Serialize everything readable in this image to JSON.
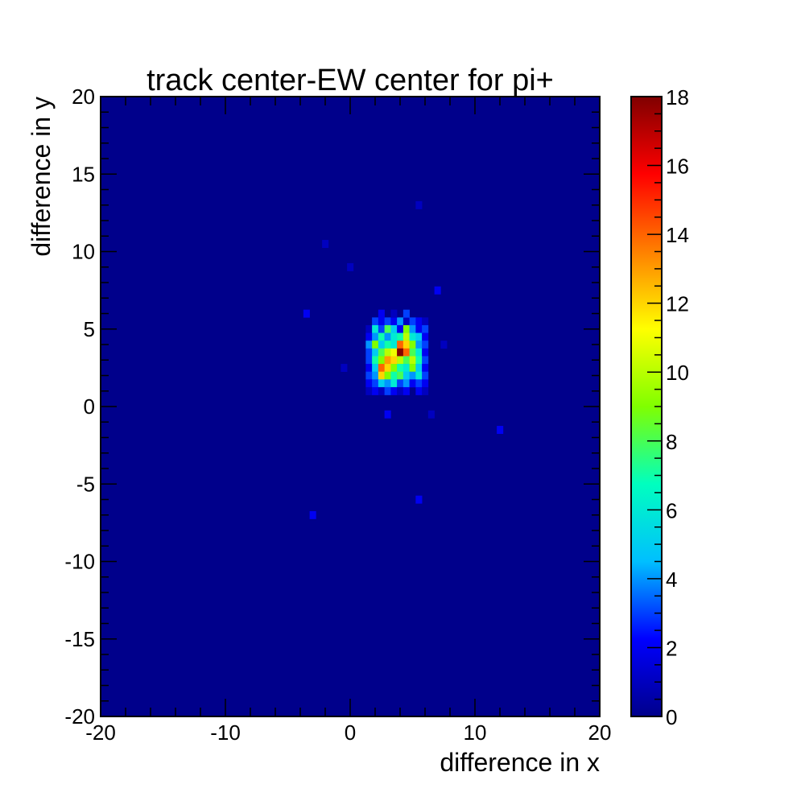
{
  "chart_data": {
    "type": "heatmap",
    "title": "track center-EW center for pi+",
    "xlabel": "difference in x",
    "ylabel": "difference in y",
    "xlim": [
      -20,
      20
    ],
    "ylim": [
      -20,
      20
    ],
    "zlim": [
      0,
      18
    ],
    "bin_width": 0.5,
    "x_ticks": [
      "-20",
      "-10",
      "0",
      "10",
      "20"
    ],
    "y_ticks": [
      "-20",
      "-15",
      "-10",
      "-5",
      "0",
      "5",
      "10",
      "15",
      "20"
    ],
    "z_ticks": [
      "0",
      "2",
      "4",
      "6",
      "8",
      "10",
      "12",
      "14",
      "16",
      "18"
    ],
    "colormap": [
      "#00008b",
      "#0000ff",
      "#00bfff",
      "#00ffbf",
      "#80ff00",
      "#ffff00",
      "#ff8000",
      "#ff0000",
      "#800000"
    ],
    "background_color": "#00008b",
    "bins": [
      [
        -3.5,
        6,
        2
      ],
      [
        -2,
        10.5,
        1
      ],
      [
        0,
        9,
        1
      ],
      [
        5.5,
        13,
        1
      ],
      [
        7,
        7.5,
        2
      ],
      [
        -0.5,
        2.5,
        1
      ],
      [
        3,
        -0.5,
        2
      ],
      [
        6.5,
        -0.5,
        1
      ],
      [
        12,
        -1.5,
        2
      ],
      [
        5.5,
        -6,
        2
      ],
      [
        -3,
        -7,
        2
      ],
      [
        7.5,
        4,
        1
      ],
      [
        2,
        5.5,
        3
      ],
      [
        2.5,
        5.5,
        2
      ],
      [
        3,
        5.5,
        3
      ],
      [
        3.5,
        5.5,
        2
      ],
      [
        4,
        5.5,
        4
      ],
      [
        4.5,
        5.5,
        1
      ],
      [
        5,
        5.5,
        3
      ],
      [
        5.5,
        5.5,
        2
      ],
      [
        6,
        5.5,
        1
      ],
      [
        2.5,
        6,
        2
      ],
      [
        3.5,
        6,
        1
      ],
      [
        4.5,
        6,
        3
      ],
      [
        1.5,
        5,
        1
      ],
      [
        2,
        5,
        6
      ],
      [
        2.5,
        5,
        3
      ],
      [
        3,
        5,
        8
      ],
      [
        3.5,
        5,
        5
      ],
      [
        4,
        5,
        2
      ],
      [
        4.5,
        5,
        9
      ],
      [
        5,
        5,
        4
      ],
      [
        5.5,
        5,
        2
      ],
      [
        6,
        5,
        3
      ],
      [
        1.5,
        4.5,
        2
      ],
      [
        2,
        4.5,
        4
      ],
      [
        2.5,
        4.5,
        7
      ],
      [
        3,
        4.5,
        4
      ],
      [
        3.5,
        4.5,
        6
      ],
      [
        4,
        4.5,
        7
      ],
      [
        4.5,
        4.5,
        10
      ],
      [
        5,
        4.5,
        6
      ],
      [
        5.5,
        4.5,
        5
      ],
      [
        6,
        4.5,
        2
      ],
      [
        1.5,
        4,
        4
      ],
      [
        2,
        4,
        9
      ],
      [
        2.5,
        4,
        5
      ],
      [
        3,
        4,
        7
      ],
      [
        3.5,
        4,
        6
      ],
      [
        4,
        4,
        14
      ],
      [
        4.5,
        4,
        12
      ],
      [
        5,
        4,
        9
      ],
      [
        5.5,
        4,
        4
      ],
      [
        6,
        4,
        3
      ],
      [
        1.5,
        3.5,
        3
      ],
      [
        2,
        3.5,
        5
      ],
      [
        2.5,
        3.5,
        8
      ],
      [
        3,
        3.5,
        10
      ],
      [
        3.5,
        3.5,
        11
      ],
      [
        4,
        3.5,
        18
      ],
      [
        4.5,
        3.5,
        14
      ],
      [
        5,
        3.5,
        8
      ],
      [
        5.5,
        3.5,
        6
      ],
      [
        6,
        3.5,
        2
      ],
      [
        1.5,
        3,
        3
      ],
      [
        2,
        3,
        7
      ],
      [
        2.5,
        3,
        9
      ],
      [
        3,
        3,
        13
      ],
      [
        3.5,
        3,
        12
      ],
      [
        4,
        3,
        10
      ],
      [
        4.5,
        3,
        8
      ],
      [
        5,
        3,
        10
      ],
      [
        5.5,
        3,
        7
      ],
      [
        6,
        3,
        3
      ],
      [
        1.5,
        2.5,
        2
      ],
      [
        2,
        2.5,
        5
      ],
      [
        2.5,
        2.5,
        14
      ],
      [
        3,
        2.5,
        12
      ],
      [
        3.5,
        2.5,
        9
      ],
      [
        4,
        2.5,
        7
      ],
      [
        4.5,
        2.5,
        6
      ],
      [
        5,
        2.5,
        9
      ],
      [
        5.5,
        2.5,
        5
      ],
      [
        6,
        2.5,
        2
      ],
      [
        1.5,
        2,
        3
      ],
      [
        2,
        2,
        4
      ],
      [
        2.5,
        2,
        12
      ],
      [
        3,
        2,
        9
      ],
      [
        3.5,
        2,
        7
      ],
      [
        4,
        2,
        8
      ],
      [
        4.5,
        2,
        5
      ],
      [
        5,
        2,
        4
      ],
      [
        5.5,
        2,
        6
      ],
      [
        6,
        2,
        3
      ],
      [
        1.5,
        1.5,
        2
      ],
      [
        2,
        1.5,
        3
      ],
      [
        2.5,
        1.5,
        5
      ],
      [
        3,
        1.5,
        4
      ],
      [
        3.5,
        1.5,
        6
      ],
      [
        4,
        1.5,
        3
      ],
      [
        4.5,
        1.5,
        4
      ],
      [
        5,
        1.5,
        2
      ],
      [
        5.5,
        1.5,
        3
      ],
      [
        6,
        1.5,
        2
      ],
      [
        1.5,
        1,
        1
      ],
      [
        2,
        1,
        2
      ],
      [
        2.5,
        1,
        1
      ],
      [
        3,
        1,
        3
      ],
      [
        3.5,
        1,
        2
      ],
      [
        4,
        1,
        1
      ],
      [
        4.5,
        1,
        2
      ],
      [
        5.5,
        1,
        2
      ],
      [
        6,
        1,
        1
      ]
    ]
  }
}
